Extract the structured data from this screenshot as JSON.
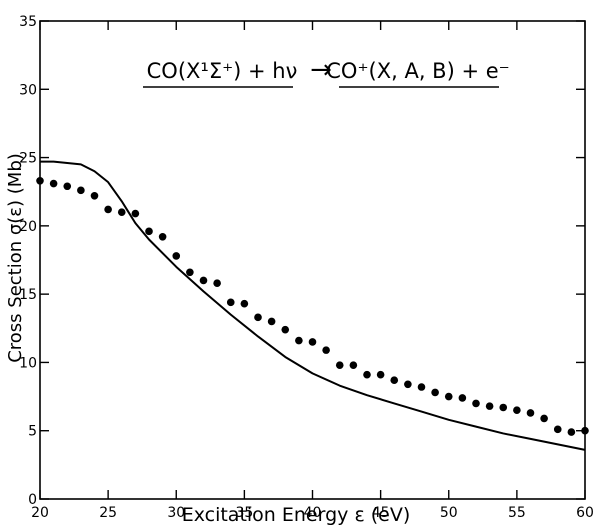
{
  "chart_data": {
    "type": "line",
    "xlabel": "Excitation Energy ε (eV)",
    "ylabel": "Cross Section σ(ε) (Mb)",
    "xlim": [
      20,
      60
    ],
    "ylim": [
      0,
      35
    ],
    "xticks": [
      20,
      25,
      30,
      35,
      40,
      45,
      50,
      55,
      60
    ],
    "yticks": [
      0,
      5,
      10,
      15,
      20,
      25,
      30,
      35
    ],
    "grid": false,
    "annotation": {
      "left": "CO(X¹Σ⁺) + hν",
      "arrow": "→",
      "right": "CO⁺(X, A, B) + e⁻"
    },
    "series": [
      {
        "style": "solid-line",
        "x": [
          20,
          21,
          22,
          23,
          24,
          25,
          26,
          27,
          28,
          30,
          32,
          34,
          36,
          38,
          40,
          42,
          44,
          46,
          48,
          50,
          52,
          54,
          56,
          58,
          60
        ],
        "values": [
          24.7,
          24.7,
          24.6,
          24.5,
          24.0,
          23.2,
          21.8,
          20.2,
          19.0,
          17.0,
          15.2,
          13.5,
          11.9,
          10.4,
          9.2,
          8.3,
          7.6,
          7.0,
          6.4,
          5.8,
          5.3,
          4.8,
          4.4,
          4.0,
          3.6
        ]
      },
      {
        "style": "dots",
        "x": [
          20,
          21,
          22,
          23,
          24,
          25,
          26,
          27,
          28,
          29,
          30,
          31,
          32,
          33,
          34,
          35,
          36,
          37,
          38,
          39,
          40,
          41,
          42,
          43,
          44,
          45,
          46,
          47,
          48,
          49,
          50,
          51,
          52,
          53,
          54,
          55,
          56,
          57,
          58,
          59,
          60
        ],
        "values": [
          23.3,
          23.1,
          22.9,
          22.6,
          22.2,
          21.2,
          21.0,
          20.9,
          19.6,
          19.2,
          17.8,
          16.6,
          16.0,
          15.8,
          14.4,
          14.3,
          13.3,
          13.0,
          12.4,
          11.6,
          11.5,
          10.9,
          9.8,
          9.8,
          9.1,
          9.1,
          8.7,
          8.4,
          8.2,
          7.8,
          7.5,
          7.4,
          7.0,
          6.8,
          6.7,
          6.5,
          6.3,
          5.9,
          5.1,
          4.9,
          5.0
        ]
      }
    ]
  }
}
